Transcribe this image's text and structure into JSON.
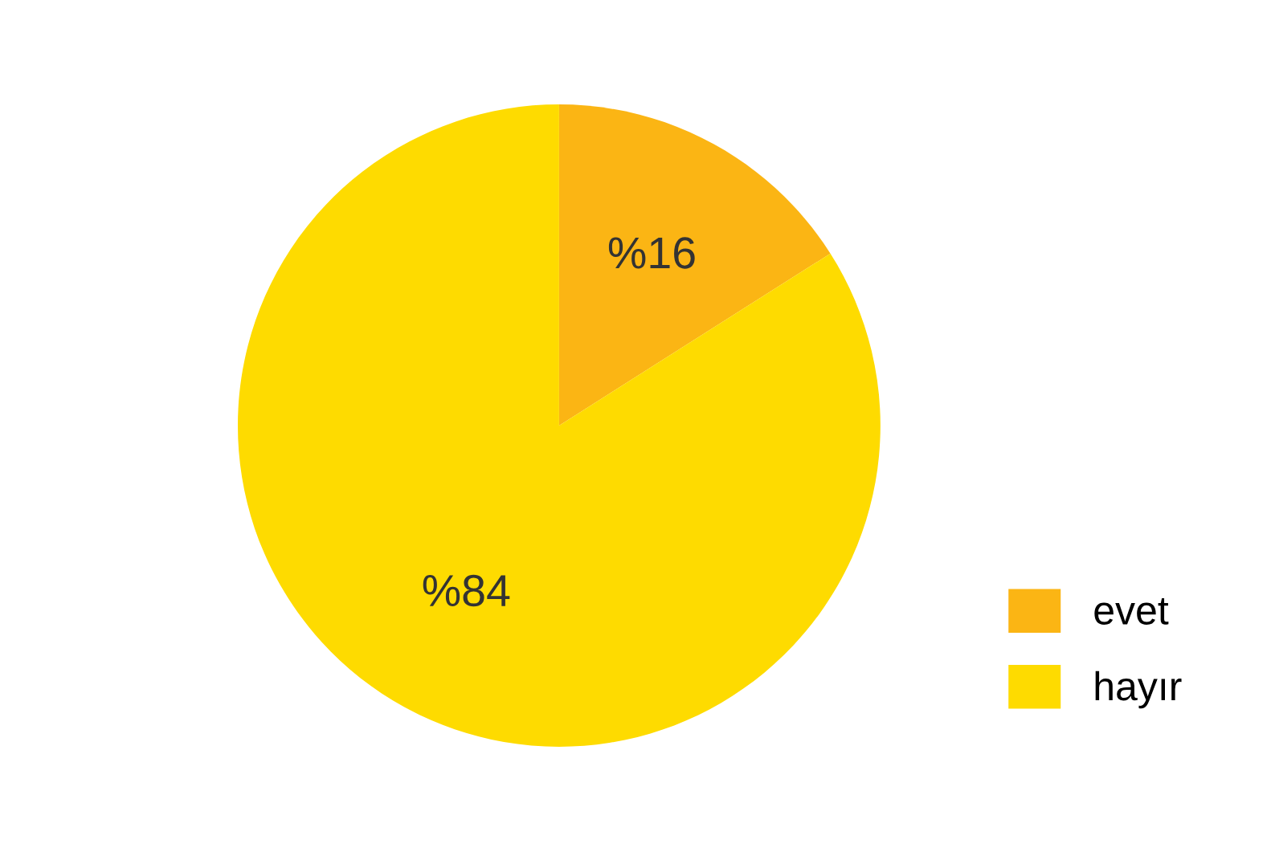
{
  "chart_data": {
    "type": "pie",
    "categories": [
      "evet",
      "hayır"
    ],
    "values": [
      16,
      84
    ],
    "colors": [
      "#fbb514",
      "#fedb00"
    ],
    "value_labels": [
      "%16",
      "%84"
    ],
    "legend": "bottom right"
  }
}
